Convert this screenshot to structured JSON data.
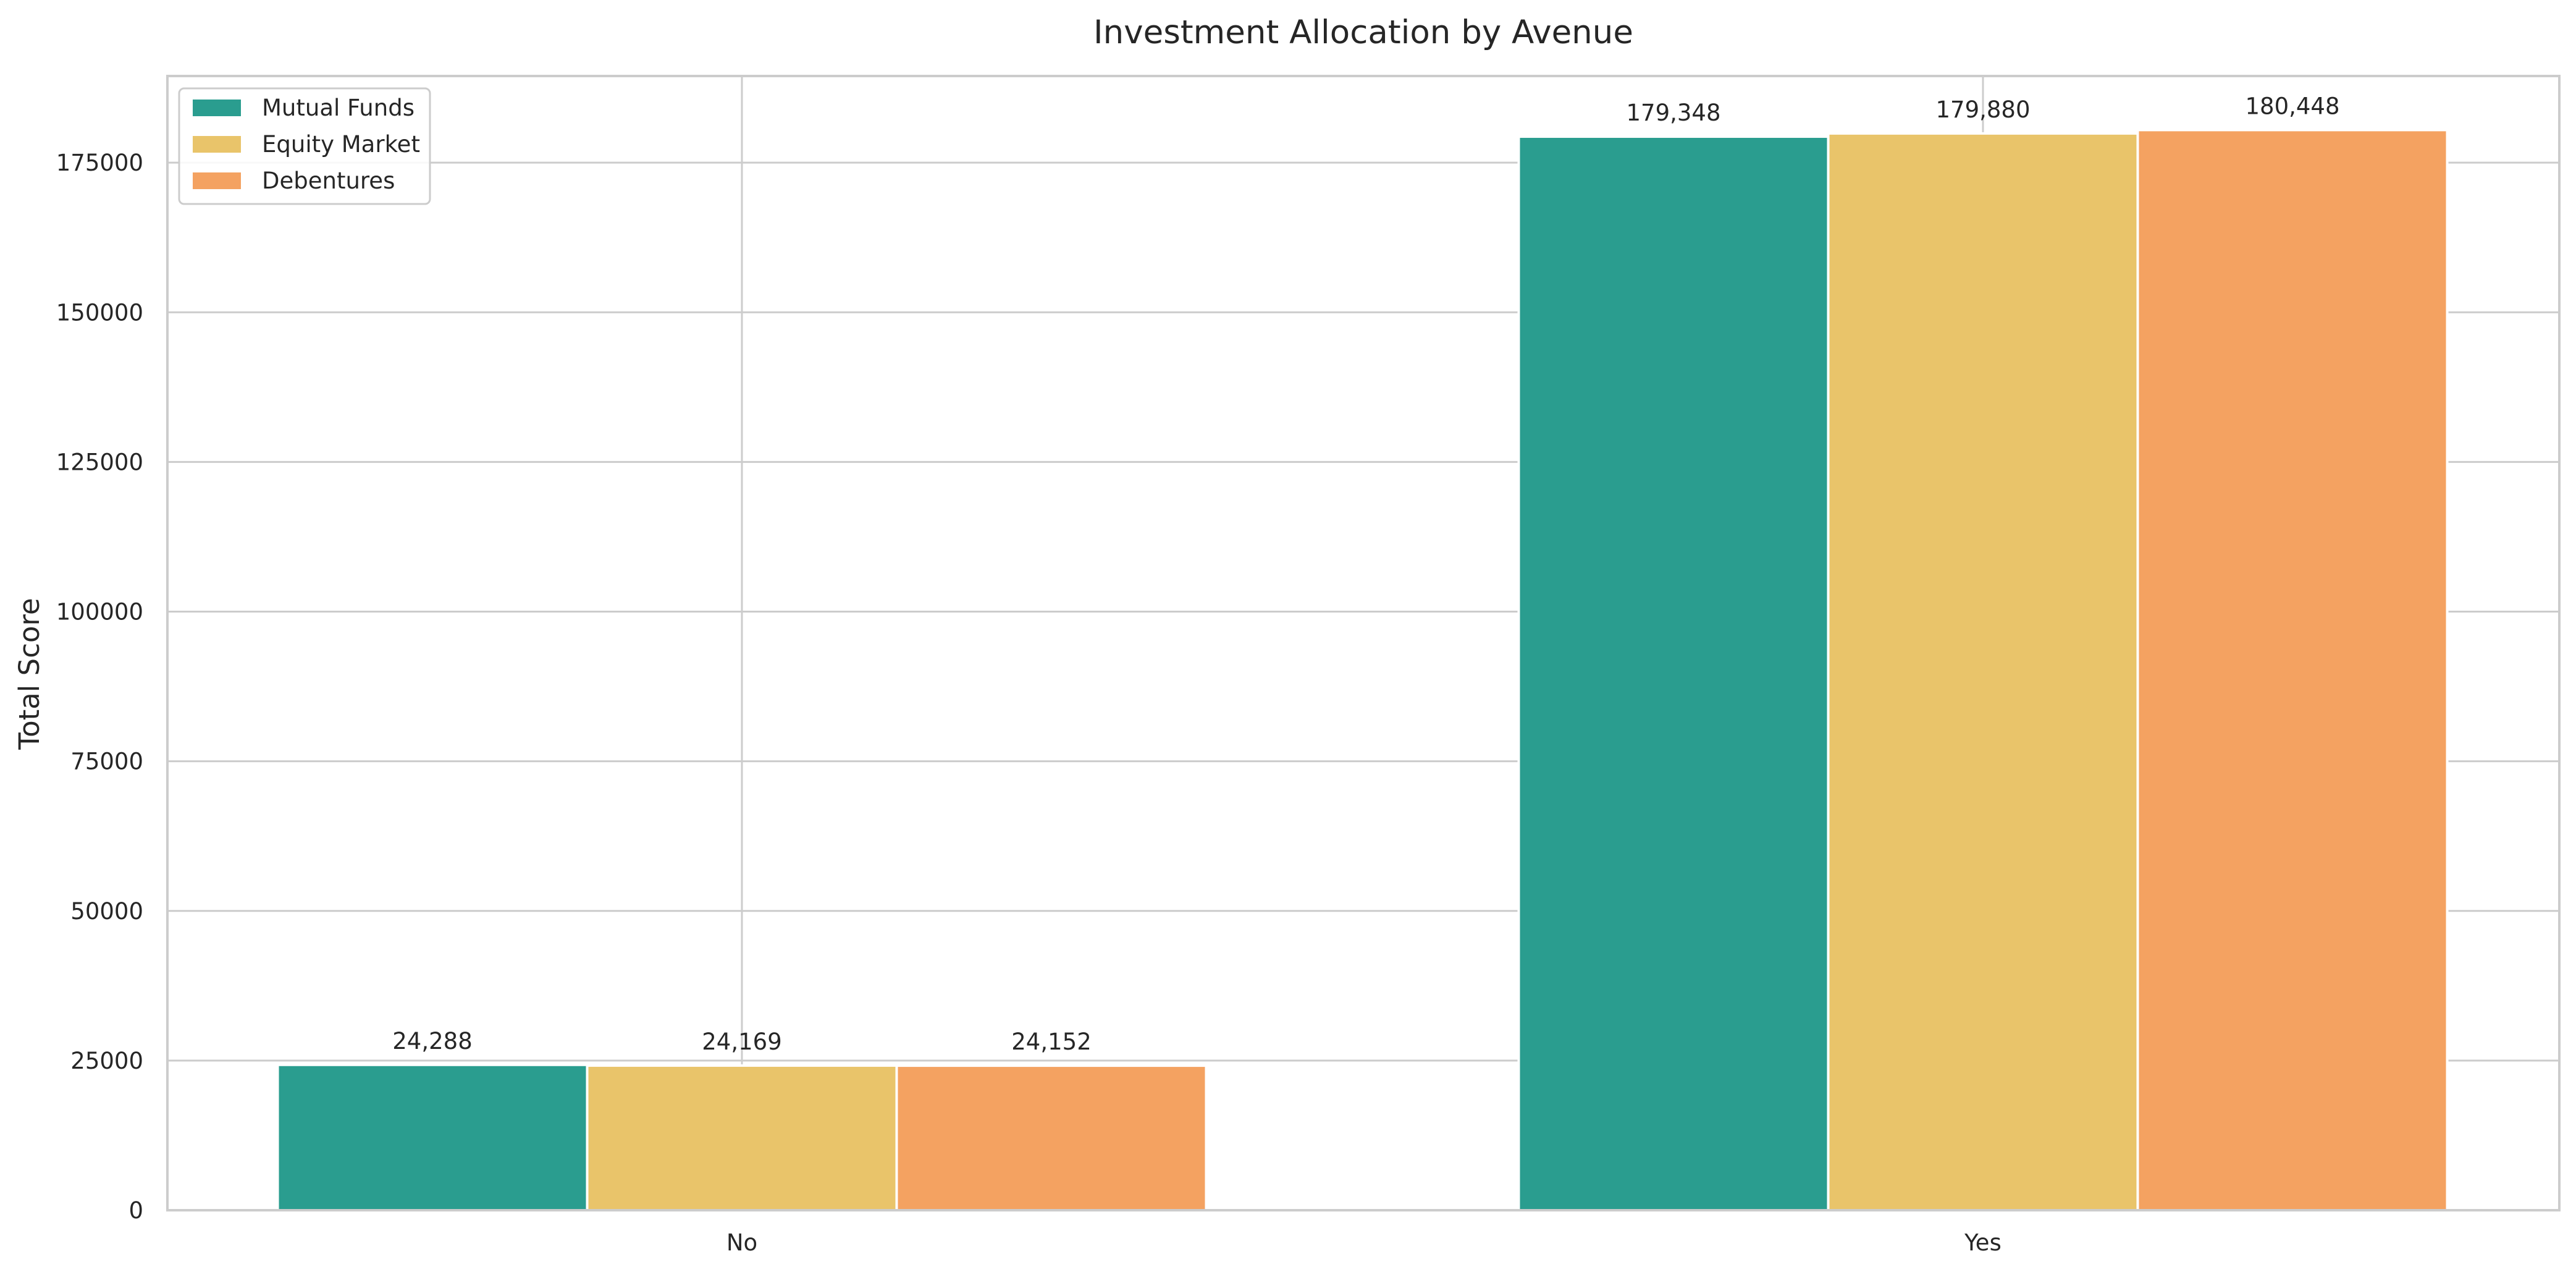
{
  "chart_data": {
    "type": "bar",
    "title": "Investment Allocation by Avenue",
    "xlabel": "",
    "ylabel": "Total Score",
    "categories": [
      "No",
      "Yes"
    ],
    "series": [
      {
        "name": "Mutual Funds",
        "values": [
          24288,
          179348
        ],
        "labels": [
          "24,288",
          "179,348"
        ],
        "color": "#2a9d8f"
      },
      {
        "name": "Equity Market",
        "values": [
          24169,
          179880
        ],
        "labels": [
          "24,169",
          "179,880"
        ],
        "color": "#e9c46a"
      },
      {
        "name": "Debentures",
        "values": [
          24152,
          180448
        ],
        "labels": [
          "24,152",
          "180,448"
        ],
        "color": "#f4a261"
      }
    ],
    "yticks": [
      0,
      25000,
      50000,
      75000,
      100000,
      125000,
      150000,
      175000
    ],
    "ytick_labels": [
      "0",
      "25000",
      "50000",
      "75000",
      "100000",
      "125000",
      "150000",
      "175000"
    ],
    "ylim": [
      0,
      189470
    ],
    "grid": true,
    "legend_position": "top-left"
  },
  "colors": {
    "grid": "#cccccc",
    "frame": "#cccccc",
    "text": "#262626",
    "background": "#ffffff"
  }
}
